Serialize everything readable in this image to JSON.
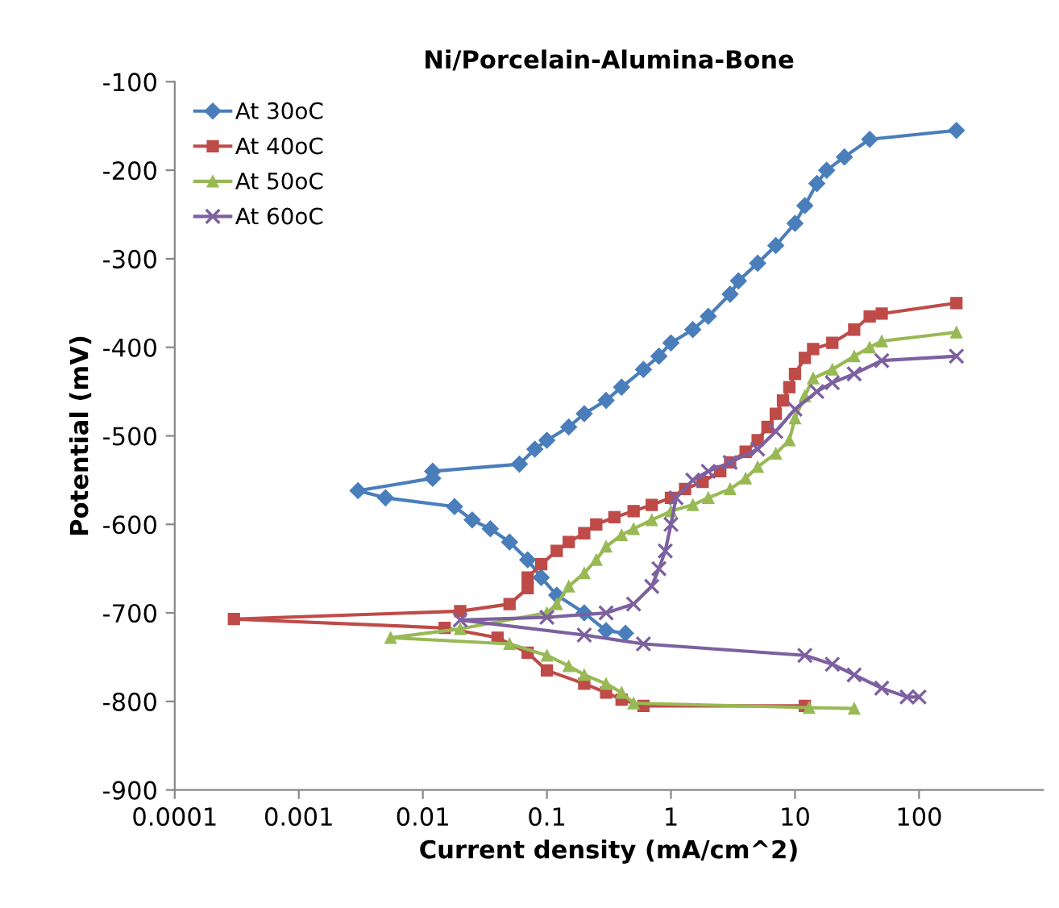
{
  "chart_data": {
    "type": "line",
    "title": "Ni/Porcelain-Alumina-Bone",
    "xlabel": "Current density (mA/cm^2)",
    "ylabel": "Potential (mV)",
    "log": "x",
    "xlim": [
      0.0001,
      1000
    ],
    "xticks": [
      0.0001,
      0.001,
      0.01,
      0.1,
      1,
      10,
      100
    ],
    "ylim": [
      -900,
      -100
    ],
    "yticks": [
      -100,
      -200,
      -300,
      -400,
      -500,
      -600,
      -700,
      -800,
      -900
    ],
    "grid": false,
    "legend": "top left",
    "line_style": "solid",
    "series": [
      {
        "name": "At 30oC",
        "color": "#4a7ebb",
        "marker": "diamond",
        "x": [
          0.43,
          0.3,
          0.2,
          0.12,
          0.09,
          0.07,
          0.05,
          0.035,
          0.025,
          0.018,
          0.005,
          0.003,
          0.012,
          0.012,
          0.06,
          0.08,
          0.1,
          0.15,
          0.2,
          0.3,
          0.4,
          0.6,
          0.8,
          1.0,
          1.5,
          2.0,
          3.0,
          3.5,
          5,
          7,
          10,
          12,
          15,
          18,
          25,
          40,
          200
        ],
        "values": [
          -723,
          -720,
          -700,
          -680,
          -660,
          -640,
          -620,
          -605,
          -595,
          -580,
          -570,
          -562,
          -548,
          -540,
          -532,
          -515,
          -505,
          -490,
          -475,
          -460,
          -445,
          -425,
          -410,
          -395,
          -380,
          -365,
          -340,
          -325,
          -305,
          -285,
          -260,
          -240,
          -215,
          -200,
          -185,
          -165,
          -155
        ]
      },
      {
        "name": "At 40oC",
        "color": "#be4b48",
        "marker": "square",
        "x": [
          12,
          0.6,
          0.4,
          0.3,
          0.2,
          0.1,
          0.07,
          0.04,
          0.015,
          0.0003,
          0.02,
          0.05,
          0.07,
          0.07,
          0.09,
          0.12,
          0.15,
          0.2,
          0.25,
          0.35,
          0.5,
          0.7,
          1,
          1.3,
          1.8,
          2.5,
          3,
          4,
          5,
          6,
          7,
          8,
          9,
          10,
          12,
          14,
          20,
          30,
          40,
          50,
          200
        ],
        "values": [
          -805,
          -805,
          -798,
          -790,
          -780,
          -765,
          -745,
          -728,
          -717,
          -707,
          -698,
          -690,
          -672,
          -660,
          -645,
          -630,
          -620,
          -610,
          -600,
          -592,
          -585,
          -578,
          -570,
          -560,
          -552,
          -540,
          -530,
          -518,
          -505,
          -490,
          -475,
          -460,
          -445,
          -430,
          -412,
          -402,
          -395,
          -380,
          -365,
          -362,
          -350
        ]
      },
      {
        "name": "At 50oC",
        "color": "#98b954",
        "marker": "triangle",
        "x": [
          30,
          13,
          0.5,
          0.4,
          0.3,
          0.2,
          0.15,
          0.1,
          0.05,
          0.0055,
          0.02,
          0.1,
          0.12,
          0.15,
          0.2,
          0.25,
          0.3,
          0.4,
          0.5,
          0.7,
          1,
          1.5,
          2,
          3,
          4,
          5,
          7,
          9,
          10,
          12,
          14,
          20,
          30,
          40,
          50,
          200
        ],
        "values": [
          -808,
          -807,
          -802,
          -790,
          -780,
          -770,
          -760,
          -748,
          -735,
          -728,
          -718,
          -700,
          -690,
          -670,
          -655,
          -640,
          -625,
          -612,
          -605,
          -595,
          -585,
          -578,
          -570,
          -560,
          -548,
          -535,
          -520,
          -505,
          -480,
          -455,
          -435,
          -425,
          -410,
          -400,
          -393,
          -383
        ]
      },
      {
        "name": "At 60oC",
        "color": "#7d60a0",
        "marker": "cross",
        "x": [
          100,
          80,
          50,
          30,
          20,
          12,
          0.6,
          0.2,
          0.02,
          0.1,
          0.3,
          0.5,
          0.7,
          0.8,
          0.9,
          1,
          1.1,
          1.5,
          2,
          3,
          5,
          7,
          10,
          15,
          20,
          30,
          50,
          200
        ],
        "values": [
          -795,
          -795,
          -785,
          -770,
          -758,
          -748,
          -735,
          -725,
          -708,
          -705,
          -700,
          -690,
          -670,
          -650,
          -630,
          -600,
          -570,
          -550,
          -540,
          -530,
          -515,
          -495,
          -470,
          -450,
          -440,
          -430,
          -415,
          -410
        ]
      }
    ]
  }
}
